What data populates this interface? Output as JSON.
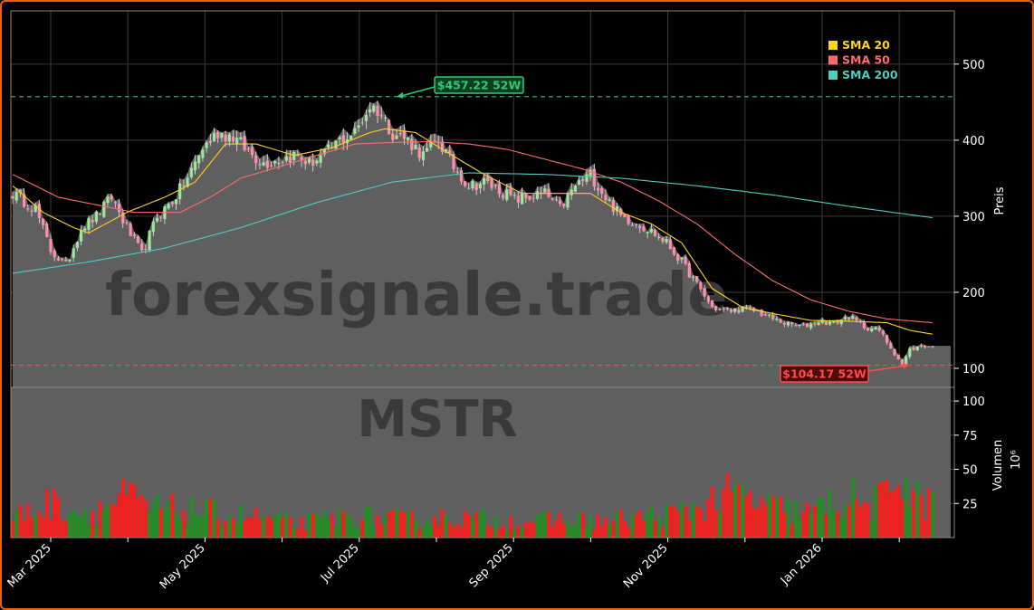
{
  "chart_data": {
    "type": "candlestick",
    "ticker": "MSTR",
    "watermark": "forexsignale.trade",
    "x_labels": [
      "Mar 2025",
      "May 2025",
      "Jul 2025",
      "Sep 2025",
      "Nov 2025",
      "Jan 2026"
    ],
    "price_axis": {
      "label": "Preis",
      "ticks": [
        100,
        200,
        300,
        400,
        500
      ],
      "ylim": [
        75,
        570
      ]
    },
    "volume_axis": {
      "label": "Volumen",
      "unit": "10⁶",
      "ticks": [
        25,
        50,
        75,
        100
      ],
      "ylim": [
        0,
        110
      ]
    },
    "legend": [
      {
        "name": "SMA 20",
        "color": "#ffd21f"
      },
      {
        "name": "SMA 50",
        "color": "#ff6b6b"
      },
      {
        "name": "SMA 200",
        "color": "#4ecdc4"
      }
    ],
    "annotations": [
      {
        "text": "$457.22 52W",
        "value": 457.22,
        "color": "#2ecc71",
        "kind": "high"
      },
      {
        "text": "$104.17 52W",
        "value": 104.17,
        "color": "#ff4d4d",
        "kind": "low"
      }
    ],
    "close_anchors": [
      [
        0,
        330
      ],
      [
        6,
        310
      ],
      [
        10,
        255
      ],
      [
        14,
        235
      ],
      [
        18,
        285
      ],
      [
        22,
        300
      ],
      [
        26,
        325
      ],
      [
        30,
        285
      ],
      [
        34,
        250
      ],
      [
        38,
        300
      ],
      [
        42,
        320
      ],
      [
        46,
        350
      ],
      [
        50,
        390
      ],
      [
        54,
        410
      ],
      [
        58,
        405
      ],
      [
        62,
        385
      ],
      [
        66,
        370
      ],
      [
        70,
        375
      ],
      [
        74,
        380
      ],
      [
        78,
        370
      ],
      [
        82,
        380
      ],
      [
        86,
        400
      ],
      [
        90,
        410
      ],
      [
        94,
        445
      ],
      [
        96,
        440
      ],
      [
        100,
        410
      ],
      [
        104,
        400
      ],
      [
        108,
        380
      ],
      [
        112,
        400
      ],
      [
        116,
        365
      ],
      [
        120,
        340
      ],
      [
        124,
        345
      ],
      [
        128,
        335
      ],
      [
        132,
        322
      ],
      [
        136,
        325
      ],
      [
        140,
        330
      ],
      [
        144,
        310
      ],
      [
        148,
        340
      ],
      [
        152,
        355
      ],
      [
        156,
        325
      ],
      [
        160,
        300
      ],
      [
        164,
        292
      ],
      [
        168,
        280
      ],
      [
        172,
        265
      ],
      [
        176,
        240
      ],
      [
        180,
        210
      ],
      [
        184,
        180
      ],
      [
        188,
        175
      ],
      [
        192,
        178
      ],
      [
        196,
        175
      ],
      [
        200,
        165
      ],
      [
        204,
        158
      ],
      [
        208,
        155
      ],
      [
        212,
        162
      ],
      [
        216,
        160
      ],
      [
        220,
        168
      ],
      [
        224,
        155
      ],
      [
        228,
        150
      ],
      [
        232,
        120
      ],
      [
        234,
        105
      ],
      [
        236,
        125
      ],
      [
        240,
        130
      ],
      [
        242,
        128
      ]
    ],
    "volume_anchors": [
      [
        0,
        15
      ],
      [
        10,
        25
      ],
      [
        20,
        18
      ],
      [
        30,
        30
      ],
      [
        35,
        22
      ],
      [
        45,
        20
      ],
      [
        55,
        18
      ],
      [
        65,
        15
      ],
      [
        75,
        10
      ],
      [
        85,
        15
      ],
      [
        95,
        15
      ],
      [
        105,
        13
      ],
      [
        115,
        15
      ],
      [
        125,
        13
      ],
      [
        135,
        12
      ],
      [
        145,
        13
      ],
      [
        155,
        12
      ],
      [
        165,
        15
      ],
      [
        175,
        18
      ],
      [
        185,
        28
      ],
      [
        190,
        32
      ],
      [
        200,
        22
      ],
      [
        210,
        18
      ],
      [
        215,
        25
      ],
      [
        220,
        30
      ],
      [
        225,
        22
      ],
      [
        230,
        30
      ],
      [
        234,
        55
      ],
      [
        236,
        30
      ],
      [
        242,
        25
      ]
    ],
    "sma20_anchors": [
      [
        0,
        340
      ],
      [
        8,
        305
      ],
      [
        16,
        285
      ],
      [
        20,
        278
      ],
      [
        30,
        305
      ],
      [
        40,
        325
      ],
      [
        48,
        345
      ],
      [
        56,
        395
      ],
      [
        64,
        395
      ],
      [
        74,
        380
      ],
      [
        84,
        390
      ],
      [
        94,
        410
      ],
      [
        98,
        415
      ],
      [
        106,
        410
      ],
      [
        114,
        385
      ],
      [
        124,
        355
      ],
      [
        134,
        330
      ],
      [
        144,
        330
      ],
      [
        152,
        330
      ],
      [
        160,
        305
      ],
      [
        168,
        290
      ],
      [
        176,
        265
      ],
      [
        184,
        205
      ],
      [
        192,
        180
      ],
      [
        200,
        172
      ],
      [
        210,
        163
      ],
      [
        220,
        162
      ],
      [
        230,
        160
      ],
      [
        236,
        150
      ],
      [
        242,
        145
      ]
    ],
    "sma50_anchors": [
      [
        0,
        355
      ],
      [
        12,
        325
      ],
      [
        22,
        315
      ],
      [
        32,
        305
      ],
      [
        44,
        305
      ],
      [
        52,
        325
      ],
      [
        60,
        350
      ],
      [
        70,
        365
      ],
      [
        80,
        380
      ],
      [
        90,
        395
      ],
      [
        100,
        397
      ],
      [
        110,
        398
      ],
      [
        120,
        395
      ],
      [
        130,
        388
      ],
      [
        140,
        375
      ],
      [
        150,
        362
      ],
      [
        160,
        345
      ],
      [
        170,
        320
      ],
      [
        180,
        290
      ],
      [
        190,
        250
      ],
      [
        200,
        215
      ],
      [
        210,
        190
      ],
      [
        220,
        175
      ],
      [
        230,
        165
      ],
      [
        242,
        160
      ]
    ],
    "sma200_anchors": [
      [
        0,
        225
      ],
      [
        20,
        240
      ],
      [
        40,
        258
      ],
      [
        60,
        285
      ],
      [
        80,
        318
      ],
      [
        100,
        345
      ],
      [
        120,
        357
      ],
      [
        140,
        355
      ],
      [
        160,
        350
      ],
      [
        180,
        340
      ],
      [
        200,
        328
      ],
      [
        220,
        313
      ],
      [
        242,
        298
      ]
    ]
  }
}
